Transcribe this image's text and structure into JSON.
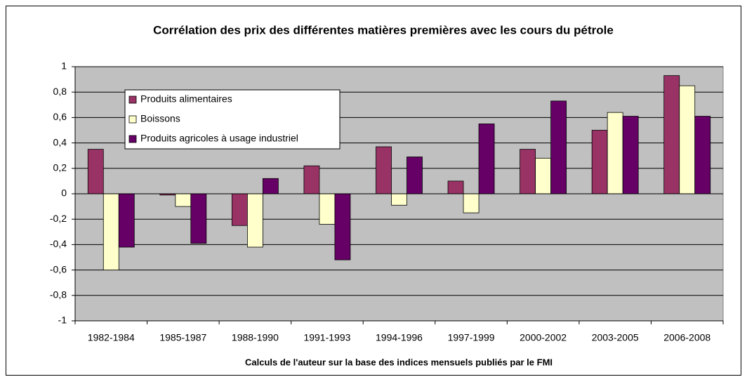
{
  "chart_data": {
    "type": "bar",
    "title": "Corrélation des prix des différentes matières premières avec les cours du pétrole",
    "x_label": "Calculs de l'auteur sur la base des indices mensuels publiés par le FMI",
    "categories": [
      "1982-1984",
      "1985-1987",
      "1988-1990",
      "1991-1993",
      "1994-1996",
      "1997-1999",
      "2000-2002",
      "2003-2005",
      "2006-2008"
    ],
    "series": [
      {
        "name": "Produits alimentaires",
        "color": "#993366",
        "values": [
          0.35,
          -0.01,
          -0.25,
          0.22,
          0.37,
          0.1,
          0.35,
          0.5,
          0.93
        ]
      },
      {
        "name": "Boissons",
        "color": "#ffffcc",
        "values": [
          -0.6,
          -0.1,
          -0.42,
          -0.24,
          -0.09,
          -0.15,
          0.28,
          0.64,
          0.85
        ]
      },
      {
        "name": "Produits agricoles à usage industriel",
        "color": "#660066",
        "values": [
          -0.42,
          -0.39,
          0.12,
          -0.52,
          0.29,
          0.55,
          0.73,
          0.61,
          0.61
        ]
      }
    ],
    "ylim": [
      -1,
      1
    ],
    "yticks": [
      {
        "value": -1,
        "label": "-1"
      },
      {
        "value": -0.8,
        "label": "-0,8"
      },
      {
        "value": -0.6,
        "label": "-0,6"
      },
      {
        "value": -0.4,
        "label": "-0,4"
      },
      {
        "value": -0.2,
        "label": "-0,2"
      },
      {
        "value": 0,
        "label": "0"
      },
      {
        "value": 0.2,
        "label": "0,2"
      },
      {
        "value": 0.4,
        "label": "0,4"
      },
      {
        "value": 0.6,
        "label": "0,6"
      },
      {
        "value": 0.8,
        "label": "0,8"
      },
      {
        "value": 1,
        "label": "1"
      }
    ],
    "grid": true,
    "legend": "upper left"
  }
}
